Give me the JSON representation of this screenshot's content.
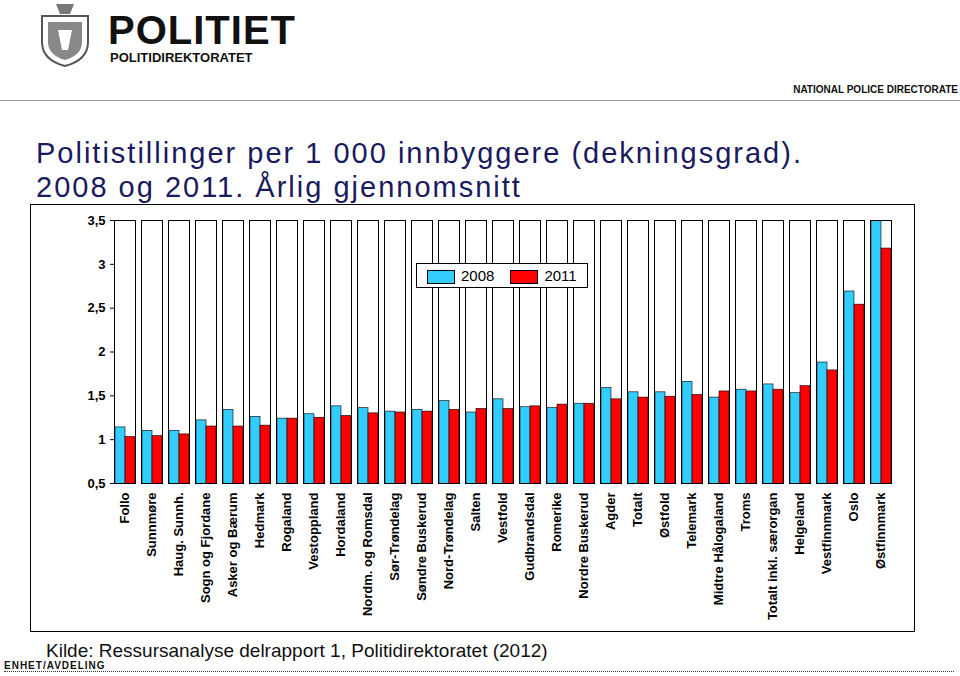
{
  "header": {
    "brand": "POLITIET",
    "department": "POLITIDIREKTORATET",
    "english": "NATIONAL POLICE DIRECTORATE"
  },
  "footer": {
    "source": "Kilde: Ressursanalyse delrapport 1, Politidirektoratet (2012)",
    "unit": "ENHET/AVDELING"
  },
  "chart_data": {
    "type": "bar",
    "title": "Politistillinger per 1 000 innbyggere (dekningsgrad). 2008 og 2011. Årlig gjennomsnitt",
    "categories": [
      "Follo",
      "Sunnmøre",
      "Haug. Sunnh.",
      "Sogn og Fjordane",
      "Asker og Bærum",
      "Hedmark",
      "Rogaland",
      "Vestoppland",
      "Hordaland",
      "Nordm. og Romsdal",
      "Sør-Trøndelag",
      "Søndre Buskerud",
      "Nord-Trøndelag",
      "Salten",
      "Vestfold",
      "Gudbrandsdal",
      "Romerike",
      "Nordre Buskerud",
      "Agder",
      "Totalt",
      "Østfold",
      "Telemark",
      "Midtre Hålogaland",
      "Troms",
      "Totalt inkl. særorgan",
      "Helgeland",
      "Vestfinnmark",
      "Oslo",
      "Østfinnmark"
    ],
    "series": [
      {
        "name": "2008",
        "color": "#33ccff",
        "values": [
          1.14,
          1.1,
          1.1,
          1.22,
          1.34,
          1.26,
          1.24,
          1.29,
          1.38,
          1.36,
          1.32,
          1.34,
          1.44,
          1.31,
          1.46,
          1.37,
          1.36,
          1.41,
          1.59,
          1.54,
          1.54,
          1.66,
          1.48,
          1.57,
          1.63,
          1.53,
          1.88,
          2.69,
          3.5
        ]
      },
      {
        "name": "2011",
        "color": "#ff0000",
        "values": [
          1.03,
          1.04,
          1.06,
          1.15,
          1.15,
          1.16,
          1.24,
          1.25,
          1.27,
          1.3,
          1.31,
          1.32,
          1.34,
          1.35,
          1.35,
          1.38,
          1.4,
          1.41,
          1.46,
          1.48,
          1.49,
          1.51,
          1.55,
          1.55,
          1.57,
          1.61,
          1.79,
          2.54,
          3.18
        ]
      }
    ],
    "ylim": [
      0.5,
      3.5
    ],
    "yticks": [
      {
        "value": 0.5,
        "label": "0,5"
      },
      1,
      {
        "value": 1.5,
        "label": "1,5"
      },
      2,
      {
        "value": 2.5,
        "label": "2,5"
      },
      3,
      {
        "value": 3.5,
        "label": "3,5"
      }
    ],
    "grid": false,
    "legend": "top"
  }
}
